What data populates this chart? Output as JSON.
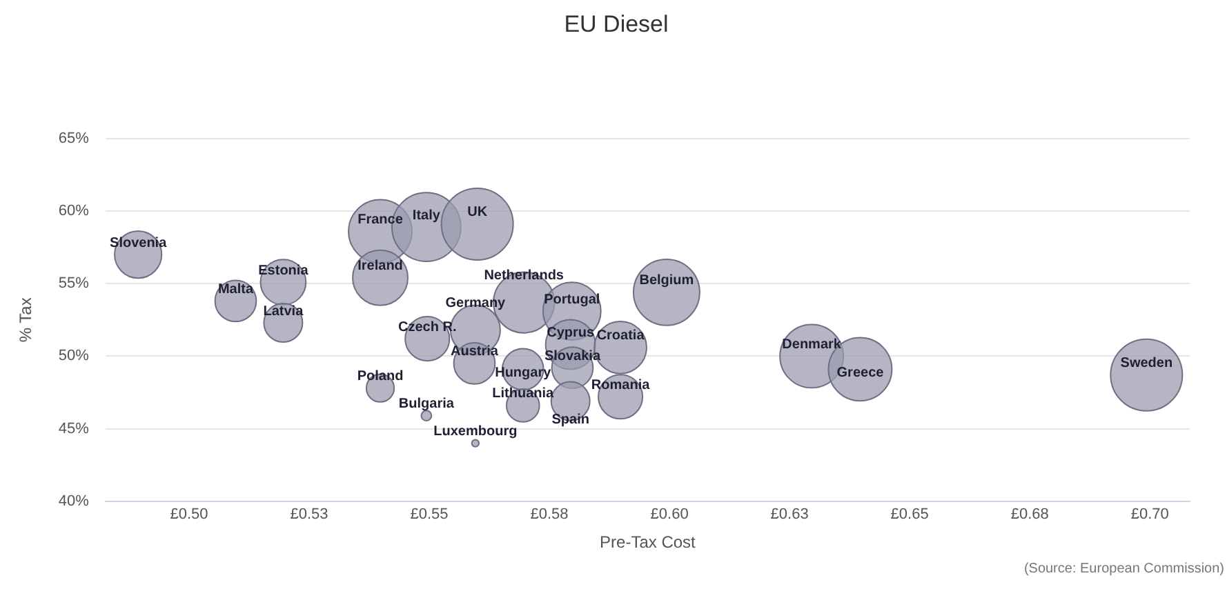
{
  "chart_data": {
    "type": "bubble",
    "title": "EU Diesel",
    "xlabel": "Pre-Tax Cost",
    "ylabel": "% Tax",
    "x": [
      0.4894,
      0.5097,
      0.5196,
      0.5196,
      0.5398,
      0.5494,
      0.56,
      0.5398,
      0.5496,
      0.5398,
      0.5494,
      0.5596,
      0.5596,
      0.5594,
      0.5697,
      0.5797,
      0.5794,
      0.5695,
      0.5798,
      0.5898,
      0.5695,
      0.5794,
      0.5898,
      0.5994,
      0.6296,
      0.6397,
      0.6993
    ],
    "values": [
      57.0,
      53.8,
      55.1,
      52.3,
      58.6,
      58.9,
      59.1,
      55.4,
      51.2,
      47.8,
      45.9,
      44.0,
      51.8,
      49.5,
      53.7,
      53.1,
      50.8,
      49.1,
      49.2,
      50.6,
      46.6,
      46.9,
      47.2,
      54.4,
      50.0,
      49.1,
      48.7
    ],
    "sizes": [
      0.43,
      0.33,
      0.4,
      0.29,
      0.78,
      0.92,
      1,
      0.59,
      0.38,
      0.15,
      0.02,
      0.01,
      0.48,
      0.33,
      0.72,
      0.65,
      0.48,
      0.33,
      0.33,
      0.53,
      0.21,
      0.29,
      0.38,
      0.85,
      0.78,
      0.78,
      1
    ],
    "color": "#9c9cb0",
    "xlim": [
      0.4826,
      0.7083
    ],
    "xticks": [
      {
        "value": 0.5,
        "label": "£0.50"
      },
      {
        "value": 0.525,
        "label": "£0.53"
      },
      {
        "value": 0.55,
        "label": "£0.55"
      },
      {
        "value": 0.575,
        "label": "£0.58"
      },
      {
        "value": 0.6,
        "label": "£0.60"
      },
      {
        "value": 0.625,
        "label": "£0.63"
      },
      {
        "value": 0.65,
        "label": "£0.65"
      },
      {
        "value": 0.675,
        "label": "£0.68"
      },
      {
        "value": 0.7,
        "label": "£0.70"
      }
    ],
    "ylim": [
      40,
      65
    ],
    "yticks": [
      {
        "value": 40,
        "label": "40%"
      },
      {
        "value": 45,
        "label": "45%"
      },
      {
        "value": 50,
        "label": "50%"
      },
      {
        "value": 55,
        "label": "55%"
      },
      {
        "value": 60,
        "label": "60%"
      },
      {
        "value": 65,
        "label": "65%"
      }
    ],
    "grid": "y",
    "legend": false,
    "annotations": [
      {
        "text": "Slovenia",
        "x": 0.4894,
        "y": 57.0
      },
      {
        "text": "Malta",
        "x": 0.5097,
        "y": 53.8
      },
      {
        "text": "Estonia",
        "x": 0.5196,
        "y": 55.1
      },
      {
        "text": "Latvia",
        "x": 0.5196,
        "y": 52.3
      },
      {
        "text": "France",
        "x": 0.5398,
        "y": 58.6
      },
      {
        "text": "Italy",
        "x": 0.5494,
        "y": 58.9
      },
      {
        "text": "UK",
        "x": 0.56,
        "y": 59.1
      },
      {
        "text": "Ireland",
        "x": 0.5398,
        "y": 55.4
      },
      {
        "text": "Czech R.",
        "x": 0.5496,
        "y": 51.2
      },
      {
        "text": "Poland",
        "x": 0.5398,
        "y": 47.8
      },
      {
        "text": "Bulgaria",
        "x": 0.5494,
        "y": 45.9
      },
      {
        "text": "Luxembourg",
        "x": 0.5596,
        "y": 44.0
      },
      {
        "text": "Germany",
        "x": 0.5596,
        "y": 51.8
      },
      {
        "text": "Austria",
        "x": 0.5594,
        "y": 49.5
      },
      {
        "text": "Netherlands",
        "x": 0.5697,
        "y": 53.7
      },
      {
        "text": "Portugal",
        "x": 0.5797,
        "y": 53.1
      },
      {
        "text": "Cyprus",
        "x": 0.5794,
        "y": 50.8
      },
      {
        "text": "Hungary",
        "x": 0.5695,
        "y": 49.1
      },
      {
        "text": "Slovakia",
        "x": 0.5798,
        "y": 49.2
      },
      {
        "text": "Croatia",
        "x": 0.5898,
        "y": 50.6
      },
      {
        "text": "Lithuania",
        "x": 0.5695,
        "y": 46.6
      },
      {
        "text": "Spain",
        "x": 0.5794,
        "y": 46.9
      },
      {
        "text": "Romania",
        "x": 0.5898,
        "y": 47.2
      },
      {
        "text": "Belgium",
        "x": 0.5994,
        "y": 54.4
      },
      {
        "text": "Denmark",
        "x": 0.6296,
        "y": 50.0
      },
      {
        "text": "Greece",
        "x": 0.6397,
        "y": 49.1
      },
      {
        "text": "Sweden",
        "x": 0.6993,
        "y": 48.7
      },
      "(Source: European Commission)"
    ]
  }
}
